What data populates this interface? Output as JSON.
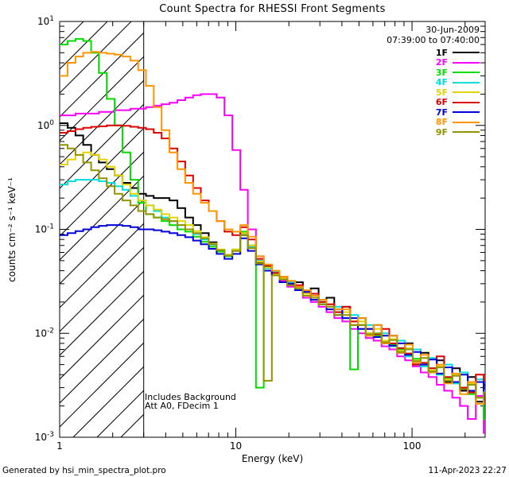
{
  "title": "Count Spectra for RHESSI Front Segments",
  "footer": {
    "left": "Generated by hsi_min_spectra_plot.pro",
    "right": "11-Apr-2023 22:27"
  },
  "annotations": {
    "date": "30-Jun-2009",
    "time_range": "07:39:00 to 07:40:00",
    "note_line1": "Includes Background",
    "note_line2": "Att A0, FDecim 1"
  },
  "chart_data": {
    "type": "line",
    "subtype": "stepped-histogram-spectra",
    "title": "Count Spectra for RHESSI Front Segments",
    "xlabel": "Energy (keV)",
    "ylabel": "counts cm⁻² s⁻¹ keV⁻¹",
    "x_scale": "log",
    "y_scale": "log",
    "xlim": [
      1,
      260
    ],
    "ylim": [
      0.001,
      10
    ],
    "x_major_ticks": [
      1,
      10,
      100
    ],
    "y_major_ticks": [
      0.001,
      0.01,
      0.1,
      1,
      10
    ],
    "grid": false,
    "legend_position": "top-right",
    "hatch_region": {
      "x_start": 1,
      "x_end": 3,
      "style": "diagonal-hatch"
    },
    "bin_edges_kev": [
      1.0,
      1.11,
      1.23,
      1.36,
      1.51,
      1.67,
      1.85,
      2.05,
      2.27,
      2.52,
      2.79,
      3.09,
      3.42,
      3.79,
      4.2,
      4.66,
      5.16,
      5.72,
      6.33,
      7.02,
      7.78,
      8.62,
      9.55,
      10.6,
      11.7,
      13.0,
      14.4,
      16.0,
      17.7,
      19.6,
      21.7,
      24.0,
      26.6,
      29.5,
      32.7,
      36.2,
      40.2,
      44.5,
      49.3,
      54.6,
      60.5,
      67.1,
      74.3,
      82.4,
      91.3,
      101,
      112,
      124,
      138,
      152,
      169,
      187,
      207,
      230,
      255,
      282
    ],
    "series": [
      {
        "name": "1F",
        "color": "#000000",
        "values": [
          1.05,
          0.95,
          0.8,
          0.65,
          0.52,
          0.44,
          0.38,
          0.33,
          0.28,
          0.25,
          0.22,
          0.21,
          0.2,
          0.2,
          0.19,
          0.16,
          0.13,
          0.11,
          0.092,
          0.075,
          0.063,
          0.056,
          0.062,
          0.088,
          0.066,
          0.048,
          0.044,
          0.036,
          0.035,
          0.029,
          0.031,
          0.024,
          0.027,
          0.019,
          0.022,
          0.015,
          0.018,
          0.012,
          0.014,
          0.0095,
          0.012,
          0.008,
          0.0095,
          0.0065,
          0.008,
          0.005,
          0.0065,
          0.0042,
          0.0055,
          0.0034,
          0.0046,
          0.0028,
          0.0038,
          0.0022,
          0.0032,
          0.0018
        ]
      },
      {
        "name": "2F",
        "color": "#ff00ff",
        "values": [
          1.25,
          1.25,
          1.3,
          1.3,
          1.3,
          1.35,
          1.35,
          1.4,
          1.4,
          1.45,
          1.45,
          1.5,
          1.55,
          1.6,
          1.65,
          1.75,
          1.85,
          1.95,
          2.0,
          2.0,
          1.85,
          1.25,
          0.58,
          0.24,
          0.1,
          0.055,
          0.045,
          0.038,
          0.032,
          0.028,
          0.026,
          0.022,
          0.02,
          0.018,
          0.016,
          0.014,
          0.013,
          0.011,
          0.01,
          0.009,
          0.0085,
          0.0075,
          0.007,
          0.006,
          0.0055,
          0.0048,
          0.0042,
          0.0038,
          0.0032,
          0.0028,
          0.0024,
          0.002,
          0.0015,
          0.0025,
          0.0011,
          0.001
        ]
      },
      {
        "name": "3F",
        "color": "#00dd00",
        "values": [
          6.0,
          6.5,
          6.8,
          6.5,
          5.0,
          3.2,
          1.8,
          1.0,
          0.55,
          0.3,
          0.18,
          0.14,
          0.13,
          0.12,
          0.11,
          0.1,
          0.095,
          0.085,
          0.076,
          0.068,
          0.061,
          0.055,
          0.064,
          0.095,
          0.07,
          0.003,
          0.04,
          0.036,
          0.033,
          0.03,
          0.027,
          0.024,
          0.022,
          0.019,
          0.017,
          0.016,
          0.014,
          0.0045,
          0.012,
          0.01,
          0.0095,
          0.0085,
          0.0078,
          0.007,
          0.0063,
          0.0057,
          0.005,
          0.0046,
          0.004,
          0.0037,
          0.0033,
          0.003,
          0.0026,
          0.0024,
          0.0015,
          0.0019
        ]
      },
      {
        "name": "4F",
        "color": "#00dede",
        "values": [
          0.27,
          0.29,
          0.3,
          0.3,
          0.3,
          0.29,
          0.28,
          0.26,
          0.24,
          0.21,
          0.19,
          0.17,
          0.15,
          0.13,
          0.12,
          0.11,
          0.1,
          0.09,
          0.08,
          0.071,
          0.063,
          0.056,
          0.063,
          0.09,
          0.068,
          0.05,
          0.042,
          0.039,
          0.033,
          0.031,
          0.027,
          0.026,
          0.022,
          0.021,
          0.018,
          0.018,
          0.014,
          0.015,
          0.011,
          0.012,
          0.0092,
          0.01,
          0.0075,
          0.0085,
          0.006,
          0.007,
          0.0048,
          0.0058,
          0.004,
          0.005,
          0.0033,
          0.0042,
          0.0027,
          0.0036,
          0.0022,
          0.003
        ]
      },
      {
        "name": "5F",
        "color": "#e3d400",
        "values": [
          0.42,
          0.47,
          0.52,
          0.55,
          0.52,
          0.47,
          0.4,
          0.33,
          0.27,
          0.22,
          0.19,
          0.17,
          0.155,
          0.14,
          0.13,
          0.12,
          0.11,
          0.096,
          0.084,
          0.073,
          0.064,
          0.057,
          0.064,
          0.092,
          0.07,
          0.049,
          0.043,
          0.037,
          0.034,
          0.03,
          0.028,
          0.024,
          0.023,
          0.02,
          0.019,
          0.016,
          0.016,
          0.013,
          0.013,
          0.01,
          0.011,
          0.0085,
          0.0088,
          0.0068,
          0.0072,
          0.0055,
          0.0058,
          0.0044,
          0.0048,
          0.0036,
          0.004,
          0.0029,
          0.0033,
          0.0024,
          0.0028,
          0.002
        ]
      },
      {
        "name": "6F",
        "color": "#dd0000",
        "values": [
          0.85,
          0.88,
          0.92,
          0.95,
          0.97,
          0.98,
          1.0,
          1.0,
          0.99,
          0.97,
          0.95,
          0.92,
          0.85,
          0.75,
          0.6,
          0.45,
          0.33,
          0.25,
          0.19,
          0.15,
          0.12,
          0.095,
          0.088,
          0.105,
          0.08,
          0.052,
          0.045,
          0.038,
          0.035,
          0.03,
          0.029,
          0.025,
          0.024,
          0.02,
          0.019,
          0.016,
          0.018,
          0.013,
          0.012,
          0.011,
          0.0098,
          0.011,
          0.008,
          0.0072,
          0.0064,
          0.005,
          0.0052,
          0.0046,
          0.006,
          0.0038,
          0.0034,
          0.003,
          0.0027,
          0.004,
          0.0022,
          0.0019
        ]
      },
      {
        "name": "7F",
        "color": "#0000dd",
        "values": [
          0.088,
          0.092,
          0.096,
          0.1,
          0.105,
          0.108,
          0.11,
          0.11,
          0.108,
          0.105,
          0.1,
          0.1,
          0.098,
          0.095,
          0.092,
          0.088,
          0.084,
          0.078,
          0.072,
          0.065,
          0.058,
          0.052,
          0.058,
          0.082,
          0.062,
          0.046,
          0.04,
          0.036,
          0.031,
          0.03,
          0.026,
          0.025,
          0.021,
          0.021,
          0.017,
          0.017,
          0.014,
          0.014,
          0.011,
          0.011,
          0.0092,
          0.0095,
          0.0076,
          0.008,
          0.0062,
          0.0066,
          0.005,
          0.0056,
          0.0041,
          0.0047,
          0.0034,
          0.004,
          0.0028,
          0.0034,
          0.0023,
          0.0028
        ]
      },
      {
        "name": "8F",
        "color": "#ff9500",
        "values": [
          3.0,
          4.0,
          4.6,
          5.0,
          5.1,
          5.0,
          4.9,
          4.8,
          4.6,
          4.2,
          3.4,
          2.4,
          1.5,
          0.9,
          0.55,
          0.38,
          0.28,
          0.22,
          0.18,
          0.15,
          0.12,
          0.1,
          0.095,
          0.11,
          0.085,
          0.055,
          0.046,
          0.04,
          0.035,
          0.032,
          0.028,
          0.026,
          0.023,
          0.021,
          0.018,
          0.017,
          0.017,
          0.012,
          0.014,
          0.0095,
          0.012,
          0.008,
          0.0095,
          0.0065,
          0.0078,
          0.0052,
          0.0062,
          0.0042,
          0.005,
          0.0033,
          0.0041,
          0.0026,
          0.0034,
          0.0021,
          0.0027,
          0.0017
        ]
      },
      {
        "name": "9F",
        "color": "#949400",
        "values": [
          0.65,
          0.6,
          0.52,
          0.44,
          0.37,
          0.31,
          0.26,
          0.22,
          0.19,
          0.17,
          0.15,
          0.14,
          0.13,
          0.125,
          0.12,
          0.11,
          0.1,
          0.092,
          0.082,
          0.072,
          0.063,
          0.056,
          0.062,
          0.088,
          0.066,
          0.047,
          0.0035,
          0.036,
          0.033,
          0.029,
          0.027,
          0.023,
          0.022,
          0.019,
          0.018,
          0.015,
          0.015,
          0.012,
          0.012,
          0.0098,
          0.01,
          0.0082,
          0.0086,
          0.0066,
          0.007,
          0.0054,
          0.0058,
          0.0043,
          0.0047,
          0.0035,
          0.0039,
          0.0029,
          0.0032,
          0.0024,
          0.0027,
          0.002
        ]
      }
    ]
  }
}
